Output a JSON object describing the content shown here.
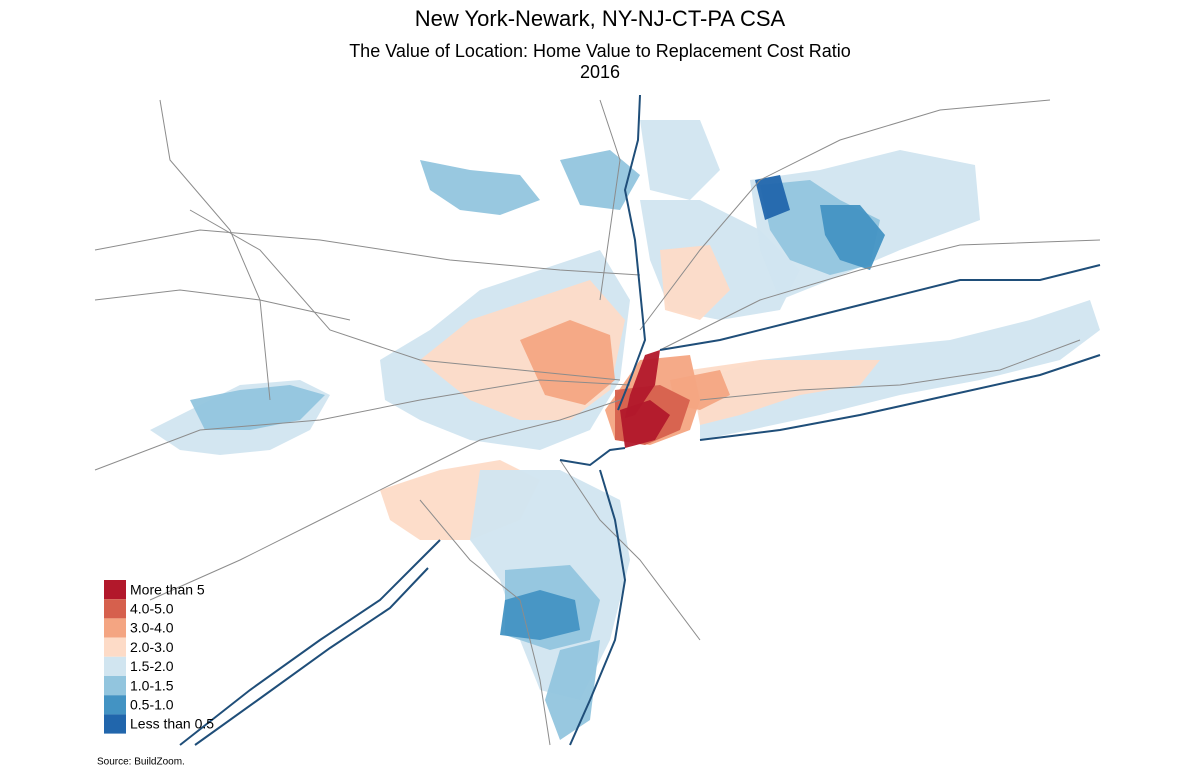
{
  "title": "New York-Newark, NY-NJ-CT-PA CSA",
  "subtitle": "The Value of Location: Home Value to Replacement Cost Ratio",
  "year": "2016",
  "legend": [
    {
      "label": "More than 5",
      "color": "#b2182b"
    },
    {
      "label": "4.0-5.0",
      "color": "#d6604d"
    },
    {
      "label": "3.0-4.0",
      "color": "#f4a582"
    },
    {
      "label": "2.0-3.0",
      "color": "#fddbc7"
    },
    {
      "label": "1.5-2.0",
      "color": "#d1e5f0"
    },
    {
      "label": "1.0-1.5",
      "color": "#92c5de"
    },
    {
      "label": "0.5-1.0",
      "color": "#4393c3"
    },
    {
      "label": "Less than 0.5",
      "color": "#2166ac"
    }
  ],
  "source": "Source: BuildZoom."
}
